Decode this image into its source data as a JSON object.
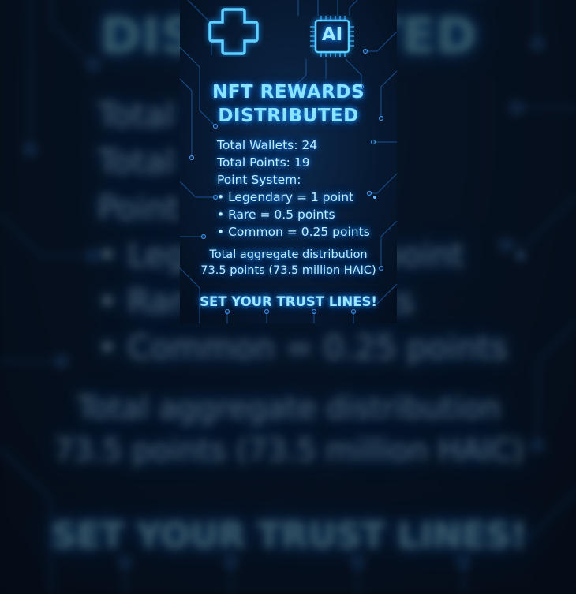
{
  "icons": [
    "medical-cross-icon",
    "ai-chip-icon"
  ],
  "chip_label": "AI",
  "title": {
    "line1": "NFT REWARDS",
    "line2": "DISTRIBUTED"
  },
  "stats": {
    "wallets": "Total Wallets: 24",
    "points": "Total Points: 19",
    "system_heading": "Point System:",
    "legendary": "• Legendary = 1 point",
    "rare": "• Rare = 0.5 points",
    "common": "• Common = 0.25 points"
  },
  "aggregate": {
    "line1": "Total aggregate distribution",
    "line2": "73.5 points (73.5 million HAIC)"
  },
  "cta": "SET YOUR TRUST LINES!",
  "colors": {
    "accent": "#8fe0ff",
    "glow": "#1e9bff",
    "background": "#071a33"
  }
}
